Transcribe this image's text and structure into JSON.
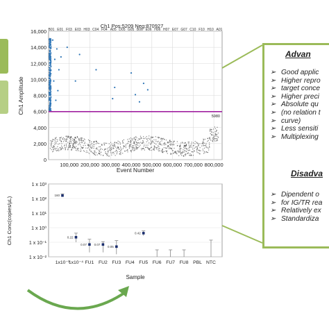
{
  "colors": {
    "panel_border": "#9bbb59",
    "arrow": "#6aa84f",
    "scatter_blue": "#2e75b6",
    "threshold": "#a020a0",
    "dots": "#1a2e6e"
  },
  "chart_data": [
    {
      "type": "scatter",
      "title": "Ch1 Pos:5209 Neg:870927",
      "xlabel": "Event Number",
      "ylabel": "Ch1 Amplitude",
      "xlim": [
        0,
        840000
      ],
      "ylim": [
        0,
        16000
      ],
      "xticks": [
        "100,000",
        "200,000",
        "300,000",
        "400,000",
        "500,000",
        "600,000",
        "700,000",
        "800,000"
      ],
      "yticks": [
        "0",
        "2,000",
        "4,000",
        "6,000",
        "8,000",
        "10,000",
        "12,000",
        "14,000",
        "16,000"
      ],
      "well_labels": [
        "B01",
        "E01",
        "F03",
        "E03",
        "H03",
        "C04",
        "F04",
        "A05",
        "D05",
        "G05",
        "B06",
        "E06",
        "H06",
        "H07",
        "E07",
        "G07",
        "C10",
        "F10",
        "H10",
        "A01"
      ],
      "threshold": 5980,
      "threshold_label": "5980",
      "series": [
        {
          "values": [
            [
              20000,
              14900
            ],
            [
              25000,
              9800
            ],
            [
              30000,
              12500
            ],
            [
              35000,
              7400
            ],
            [
              40000,
              13800
            ],
            [
              45000,
              8600
            ],
            [
              50000,
              11200
            ]
          ]
        },
        {
          "values": [
            [
              60000,
              12800
            ],
            [
              90000,
              14000
            ],
            [
              130000,
              9800
            ],
            [
              150000,
              13100
            ],
            [
              230000,
              11200
            ],
            [
              310000,
              7600
            ],
            [
              320000,
              9000
            ],
            [
              400000,
              10800
            ],
            [
              420000,
              8100
            ],
            [
              440000,
              7200
            ],
            [
              460000,
              9500
            ],
            [
              480000,
              8700
            ]
          ]
        }
      ],
      "grid": true
    },
    {
      "type": "scatter",
      "xlabel": "Sample",
      "ylabel": "Ch1 Conc(copies/µL)",
      "categories": [
        "1x10⁻¹",
        "1x10⁻⁴",
        "FU1",
        "FU2",
        "FU3",
        "FU4",
        "FU5",
        "FU6",
        "FU7",
        "FU8",
        "PBL",
        "NTC"
      ],
      "ylog": true,
      "ylim": [
        0.01,
        1000
      ],
      "ytick_labels": [
        "1 x 10³",
        "1 x 10²",
        "1 x 10¹",
        "1 x 10⁰",
        "1 x 10⁻¹",
        "1 x 10⁻²"
      ],
      "values": [
        160,
        0.22,
        0.07,
        0.07,
        0.05,
        null,
        0.42,
        null,
        null,
        null,
        null,
        null
      ],
      "error_upper": [
        210,
        0.42,
        0.16,
        0.11,
        0.13,
        null,
        0.6,
        0.03,
        0.03,
        0.03,
        null,
        0.14
      ],
      "error_lower": [
        130,
        0.1,
        0.02,
        0.02,
        0.015,
        null,
        0.28,
        null,
        null,
        null,
        null,
        null
      ],
      "data_labels": [
        "160",
        "0.22",
        "0.07",
        "0.07",
        "0.05",
        "",
        "0.42",
        "",
        "",
        "",
        "",
        ""
      ],
      "grid": true
    }
  ],
  "panel": {
    "advantages_title": "Advan",
    "advantages": [
      "Good applic",
      "Higher repro",
      "target conce",
      "Higher preci",
      "Absolute qu",
      "(no relation t",
      "curve)",
      "Less sensiti",
      "Multiplexing"
    ],
    "disadvantages_title": "Disadva",
    "disadvantages": [
      "Dipendent o",
      "for IG/TR rea",
      "Relatively ex",
      "Standardiza"
    ]
  }
}
